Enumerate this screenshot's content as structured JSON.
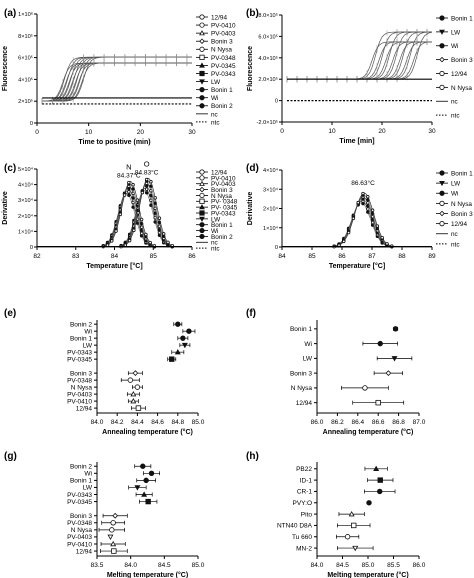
{
  "chart_data": [
    {
      "panel": "(a)",
      "type": "line",
      "xlabel": "Time to positive (min)",
      "ylabel": "Fluorescence",
      "xlim": [
        0,
        30
      ],
      "ylim": [
        0,
        1000000
      ],
      "xticks": [
        "0",
        "10",
        "20",
        "30"
      ],
      "yticks": [
        "0",
        "2×10⁵",
        "4×10⁵",
        "6×10⁵",
        "8×10⁵",
        "1×10⁶"
      ],
      "legend": [
        "12/94",
        "PV-0410",
        "PV-0403",
        "Bonin 3",
        "N Nysa",
        "PV-0348",
        "PV-0345",
        "PV-0343",
        "LW",
        "Bonin 1",
        "Wi",
        "Bonin 2",
        "nc",
        "ntc"
      ],
      "markers": [
        "o-open",
        "o-open",
        "tri-open",
        "dia-open",
        "circ-open",
        "sq-open",
        "tri-fill",
        "sq-fill",
        "tri-down-fill",
        "circ-fill",
        "circ-fill",
        "circ-fill",
        "solid",
        "dotted"
      ],
      "curves": {
        "onset_min": 5,
        "onset_max": 9,
        "plateau": [
          550000,
          650000
        ]
      },
      "baselines": [
        {
          "name": "nc",
          "values": [
            230000,
            230000
          ]
        },
        {
          "name": "ntc",
          "values": [
            175000,
            175000
          ]
        }
      ]
    },
    {
      "panel": "(b)",
      "type": "line",
      "xlabel": "Time [min]",
      "ylabel": "Fluorescence",
      "xlim": [
        0,
        30
      ],
      "ylim": [
        -200000,
        800000
      ],
      "xticks": [
        "0",
        "10",
        "20",
        "30"
      ],
      "yticks": [
        "-2.0×10⁵",
        "0",
        "2.0×10⁵",
        "4.0×10⁵",
        "6.0×10⁵",
        "8.0×10⁵"
      ],
      "legend": [
        "Bonin 1",
        "LW",
        "Wi",
        "Bonin 3",
        "12/94",
        "N Nysa",
        "nc",
        "ntc"
      ],
      "markers": [
        "circ-fill",
        "tri-down-fill",
        "circ-fill",
        "dia-open",
        "o-open",
        "circ-open",
        "solid",
        "dotted"
      ],
      "curves": {
        "onset_min": 18,
        "onset_max": 27,
        "plateau": [
          550000,
          720000
        ]
      },
      "baselines": [
        {
          "name": "nc",
          "values": [
            200000,
            200000
          ]
        },
        {
          "name": "ntc",
          "values": [
            0,
            0
          ]
        }
      ]
    },
    {
      "panel": "(c)",
      "type": "line",
      "xlabel": "Temperature [°C]",
      "ylabel": "Derivative",
      "xlim": [
        82,
        86
      ],
      "ylim": [
        0,
        50000
      ],
      "xticks": [
        "82",
        "83",
        "84",
        "85",
        "86"
      ],
      "yticks": [
        "0",
        "1×10⁴",
        "2×10⁴",
        "3×10⁴",
        "4×10⁴",
        "5×10⁴"
      ],
      "legend": [
        "12/94",
        "PV-0410",
        "PV-0403",
        "Bonin 3",
        "N Nysa",
        "PV- 0348",
        "PV- 0345",
        "PV-0343",
        "LW",
        "Bonin 1",
        "Wi",
        "Bonin 2",
        "nc",
        "ntc"
      ],
      "markers": [
        "o-open",
        "o-open",
        "tri-open",
        "dia-open",
        "circ-open",
        "sq-open",
        "tri-fill",
        "sq-fill",
        "tri-down-fill",
        "circ-fill",
        "circ-fill",
        "circ-fill",
        "solid",
        "dotted"
      ],
      "annotations": [
        {
          "text": "N",
          "sub": "84.37°C"
        },
        {
          "text": "O",
          "sub": "84.83°C"
        }
      ],
      "peaks": [
        {
          "group": "N",
          "center": 84.37,
          "height": 42000,
          "sigma": 0.22
        },
        {
          "group": "O",
          "center": 84.83,
          "height": 44000,
          "sigma": 0.22
        }
      ]
    },
    {
      "panel": "(d)",
      "type": "line",
      "xlabel": "Temperature [°C]",
      "ylabel": "Derivative",
      "xlim": [
        84,
        89
      ],
      "ylim": [
        0,
        40000
      ],
      "xticks": [
        "84",
        "85",
        "86",
        "87",
        "88",
        "89"
      ],
      "yticks": [
        "0",
        "1×10⁴",
        "2×10⁴",
        "3×10⁴",
        "4×10⁴"
      ],
      "legend": [
        "Bonin 1",
        "LW",
        "Wi",
        "N Nysa",
        "Bonin 3",
        "12/94",
        "nc",
        "ntc"
      ],
      "markers": [
        "circ-fill",
        "tri-down-fill",
        "circ-fill",
        "circ-open",
        "dia-open",
        "o-open",
        "solid",
        "dotted"
      ],
      "annotations": [
        {
          "text": "86.63°C"
        }
      ],
      "peaks": [
        {
          "center": 86.7,
          "height": 28000,
          "sigma": 0.32
        }
      ]
    },
    {
      "panel": "(e)",
      "type": "scatter",
      "xlabel": "Annealing temperature (°C)",
      "xlim": [
        84.0,
        85.0
      ],
      "xticks": [
        "84.0",
        "84.2",
        "84.4",
        "84.6",
        "84.8",
        "85.0"
      ],
      "rows": [
        "Bonin 2",
        "Wi",
        "Bonin 1",
        "LW",
        "PV-0343",
        "PV-0345",
        "",
        "Bonin 3",
        "PV-0348",
        "N Nysa",
        "PV-0403",
        "PV-0410",
        "12/94"
      ],
      "values": [
        84.8,
        84.91,
        84.85,
        84.87,
        84.8,
        84.74,
        null,
        84.38,
        84.33,
        84.4,
        84.36,
        84.36,
        84.41
      ],
      "errors": [
        0.04,
        0.06,
        0.05,
        0.05,
        0.06,
        0.04,
        null,
        0.07,
        0.09,
        0.05,
        0.06,
        0.05,
        0.07
      ],
      "markers": [
        "circ-fill",
        "circ-fill",
        "circ-fill",
        "tri-down-fill",
        "tri-fill",
        "sq-fill",
        "",
        "dia-open",
        "circ-open",
        "circ-open",
        "tri-open",
        "tri-open",
        "sq-open"
      ]
    },
    {
      "panel": "(f)",
      "type": "scatter",
      "xlabel": "Annealing temperature (°C)",
      "xlim": [
        86.0,
        87.0
      ],
      "xticks": [
        "86.0",
        "86.2",
        "86.4",
        "86.6",
        "86.8",
        "87.0"
      ],
      "rows": [
        "Bonin 1",
        "Wi",
        "LW",
        "Bonin 3",
        "N Nysa",
        "12/94"
      ],
      "values": [
        86.77,
        86.62,
        86.76,
        86.7,
        86.47,
        86.6
      ],
      "errors": [
        0.02,
        0.17,
        0.17,
        0.14,
        0.23,
        0.25
      ],
      "markers": [
        "circ-fill",
        "circ-fill",
        "tri-down-fill",
        "dia-open",
        "circ-open",
        "sq-open"
      ]
    },
    {
      "panel": "(g)",
      "type": "scatter",
      "xlabel": "Melting temperature (°C)",
      "xlim": [
        83.5,
        85.0
      ],
      "xticks": [
        "83.5",
        "84.0",
        "84.5",
        "85.0"
      ],
      "rows": [
        "Bonin 2",
        "Wi",
        "Bonin 1",
        "LW",
        "PV-0343",
        "PV-0345",
        "",
        "Bonin 3",
        "PV-0348",
        "N Nysa",
        "PV-0403",
        "PV-0410",
        "12/94"
      ],
      "values": [
        84.18,
        84.31,
        84.23,
        84.1,
        84.2,
        84.26,
        null,
        83.77,
        83.74,
        83.72,
        83.7,
        83.74,
        83.75
      ],
      "errors": [
        0.12,
        0.12,
        0.14,
        0.13,
        0.12,
        0.13,
        null,
        0.18,
        0.17,
        0.19,
        null,
        0.18,
        0.2
      ],
      "markers": [
        "circ-fill",
        "circ-fill",
        "circ-fill",
        "tri-down-fill",
        "tri-fill",
        "sq-fill",
        "",
        "dia-open",
        "circ-open",
        "circ-open",
        "tri-down-open",
        "tri-open",
        "sq-open"
      ]
    },
    {
      "panel": "(h)",
      "type": "scatter",
      "xlabel": "Melting temperature (°C)",
      "xlim": [
        84.0,
        86.0
      ],
      "xticks": [
        "84.0",
        "84.5",
        "85.0",
        "85.5",
        "86.0"
      ],
      "rows": [
        "PB22",
        "ID-1",
        "CR-1",
        "PVY:O",
        "Pito",
        "NTN40 D8A",
        "Tu 660",
        "MN-2"
      ],
      "values": [
        85.16,
        85.24,
        85.23,
        85.02,
        84.68,
        84.72,
        84.6,
        84.75
      ],
      "errors": [
        0.22,
        0.25,
        0.3,
        null,
        0.25,
        0.32,
        0.22,
        0.35
      ],
      "markers": [
        "tri-fill",
        "sq-fill",
        "circ-fill",
        "circ-fill",
        "tri-open",
        "sq-open",
        "circ-open",
        "tri-down-open"
      ]
    }
  ]
}
